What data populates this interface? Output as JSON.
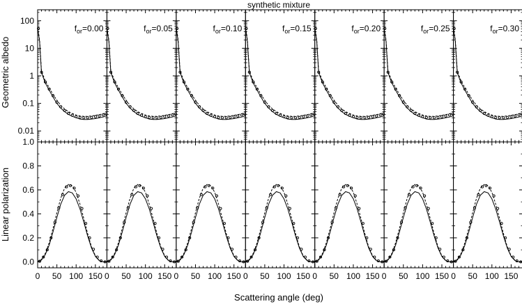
{
  "chart_data": {
    "type": "line",
    "title": "synthetic mixture",
    "xlabel": "Scattering angle (deg)",
    "xlim": [
      0,
      180
    ],
    "x_ticks": [
      0,
      50,
      100,
      150
    ],
    "rows": [
      {
        "ylabel": "Geometric albedo",
        "scale": "log",
        "ylim": [
          0.004,
          250
        ],
        "y_ticks": [
          "0.01",
          "0.1",
          "1",
          "10",
          "100"
        ],
        "y_tick_values": [
          0.01,
          0.1,
          1,
          10,
          100
        ]
      },
      {
        "ylabel": "Linear polarization",
        "scale": "linear",
        "ylim": [
          -0.05,
          1.0
        ],
        "y_ticks": [
          "0.0",
          "0.2",
          "0.4",
          "0.6",
          "0.8",
          "1.0"
        ],
        "y_tick_values": [
          0,
          0.2,
          0.4,
          0.6,
          0.8,
          1.0
        ]
      }
    ],
    "panels": [
      {
        "label": "f",
        "sub": "or",
        "value": "=0.00"
      },
      {
        "label": "f",
        "sub": "or",
        "value": "=0.05"
      },
      {
        "label": "f",
        "sub": "or",
        "value": "=0.10"
      },
      {
        "label": "f",
        "sub": "or",
        "value": "=0.15"
      },
      {
        "label": "f",
        "sub": "or",
        "value": "=0.20"
      },
      {
        "label": "f",
        "sub": "or",
        "value": "=0.25"
      },
      {
        "label": "f",
        "sub": "or",
        "value": "=0.30"
      }
    ],
    "albedo_x": [
      0,
      5,
      10,
      20,
      30,
      40,
      50,
      60,
      70,
      80,
      90,
      100,
      110,
      120,
      130,
      140,
      150,
      160,
      170,
      180
    ],
    "albedo_solid": [
      55,
      18,
      1.3,
      0.55,
      0.3,
      0.17,
      0.1,
      0.068,
      0.05,
      0.04,
      0.034,
      0.03,
      0.027,
      0.026,
      0.026,
      0.027,
      0.028,
      0.03,
      0.032,
      0.035
    ],
    "albedo_dashed": [
      58,
      20,
      1.5,
      0.65,
      0.37,
      0.21,
      0.13,
      0.085,
      0.063,
      0.05,
      0.043,
      0.038,
      0.035,
      0.034,
      0.034,
      0.035,
      0.037,
      0.039,
      0.042,
      0.046
    ],
    "albedo_points_x": [
      2,
      10,
      20,
      30,
      40,
      50,
      60,
      70,
      80,
      90,
      100,
      110,
      120,
      130,
      140,
      150,
      160,
      170,
      178
    ],
    "albedo_points": [
      52,
      1.35,
      0.6,
      0.33,
      0.19,
      0.11,
      0.075,
      0.055,
      0.043,
      0.037,
      0.033,
      0.031,
      0.03,
      0.03,
      0.031,
      0.033,
      0.035,
      0.038,
      0.041
    ],
    "pol_x": [
      0,
      10,
      20,
      30,
      40,
      50,
      60,
      70,
      80,
      90,
      100,
      110,
      120,
      130,
      140,
      150,
      160,
      170,
      180
    ],
    "pol_solid": [
      0,
      0.015,
      0.06,
      0.14,
      0.25,
      0.37,
      0.48,
      0.555,
      0.585,
      0.575,
      0.525,
      0.44,
      0.33,
      0.215,
      0.115,
      0.045,
      0.01,
      0.0,
      0.0
    ],
    "pol_dashed": [
      0,
      0.02,
      0.07,
      0.16,
      0.28,
      0.41,
      0.53,
      0.615,
      0.645,
      0.635,
      0.58,
      0.48,
      0.36,
      0.235,
      0.125,
      0.05,
      0.012,
      0.0,
      0.0
    ],
    "pol_points_x": [
      5,
      15,
      25,
      35,
      45,
      55,
      65,
      75,
      85,
      95,
      105,
      115,
      125,
      135,
      145,
      155,
      165,
      175
    ],
    "pol_points": [
      0.005,
      0.04,
      0.1,
      0.2,
      0.33,
      0.45,
      0.56,
      0.625,
      0.635,
      0.615,
      0.55,
      0.445,
      0.32,
      0.2,
      0.105,
      0.04,
      0.008,
      0.0
    ]
  }
}
